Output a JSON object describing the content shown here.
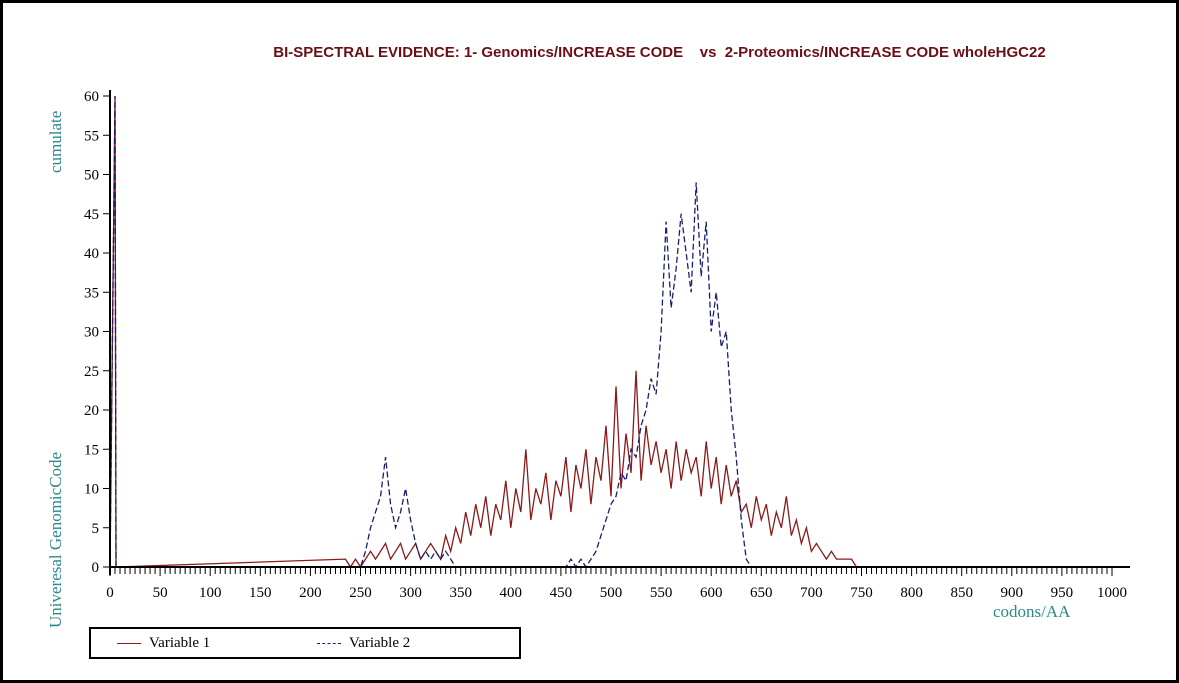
{
  "chart_data": {
    "type": "line",
    "title": "BI-SPECTRAL EVIDENCE: 1- Genomics/INCREASE CODE    vs  2-Proteomics/INCREASE CODE wholeHGC22",
    "xlabel": "codons/AA",
    "ylabel_top": "cumulate",
    "ylabel_bottom": "Univeresal GenomicCode",
    "xlim": [
      0,
      1000
    ],
    "ylim": [
      0,
      60
    ],
    "xticks": [
      "0",
      "50",
      "100",
      "150",
      "200",
      "250",
      "300",
      "350",
      "400",
      "450",
      "500",
      "550",
      "600",
      "650",
      "700",
      "750",
      "800",
      "850",
      "900",
      "950",
      "1000"
    ],
    "yticks": [
      "0",
      "5",
      "10",
      "15",
      "20",
      "25",
      "30",
      "35",
      "40",
      "45",
      "50",
      "55",
      "60"
    ],
    "grid": false,
    "legend_position": "bottom-left",
    "series": [
      {
        "name": "Variable 1",
        "color": "#8b1a1a",
        "style": "solid",
        "points": [
          [
            0,
            0
          ],
          [
            5,
            60
          ],
          [
            6,
            0
          ],
          [
            235,
            1
          ],
          [
            240,
            0
          ],
          [
            245,
            1
          ],
          [
            250,
            0
          ],
          [
            255,
            1
          ],
          [
            260,
            2
          ],
          [
            265,
            1
          ],
          [
            270,
            2
          ],
          [
            275,
            3
          ],
          [
            280,
            1
          ],
          [
            285,
            2
          ],
          [
            290,
            3
          ],
          [
            295,
            1
          ],
          [
            300,
            2
          ],
          [
            305,
            3
          ],
          [
            310,
            1
          ],
          [
            315,
            2
          ],
          [
            320,
            3
          ],
          [
            325,
            2
          ],
          [
            330,
            1
          ],
          [
            335,
            4
          ],
          [
            340,
            2
          ],
          [
            345,
            5
          ],
          [
            350,
            3
          ],
          [
            355,
            7
          ],
          [
            360,
            4
          ],
          [
            365,
            8
          ],
          [
            370,
            5
          ],
          [
            375,
            9
          ],
          [
            380,
            4
          ],
          [
            385,
            8
          ],
          [
            390,
            6
          ],
          [
            395,
            11
          ],
          [
            400,
            5
          ],
          [
            405,
            10
          ],
          [
            410,
            7
          ],
          [
            415,
            15
          ],
          [
            420,
            6
          ],
          [
            425,
            10
          ],
          [
            430,
            8
          ],
          [
            435,
            12
          ],
          [
            440,
            6
          ],
          [
            445,
            11
          ],
          [
            450,
            9
          ],
          [
            455,
            14
          ],
          [
            460,
            7
          ],
          [
            465,
            13
          ],
          [
            470,
            10
          ],
          [
            475,
            15
          ],
          [
            480,
            8
          ],
          [
            485,
            14
          ],
          [
            490,
            11
          ],
          [
            495,
            18
          ],
          [
            500,
            9
          ],
          [
            505,
            23
          ],
          [
            510,
            10
          ],
          [
            515,
            17
          ],
          [
            520,
            12
          ],
          [
            525,
            25
          ],
          [
            530,
            11
          ],
          [
            535,
            18
          ],
          [
            540,
            13
          ],
          [
            545,
            16
          ],
          [
            550,
            12
          ],
          [
            555,
            15
          ],
          [
            560,
            10
          ],
          [
            565,
            16
          ],
          [
            570,
            11
          ],
          [
            575,
            15
          ],
          [
            580,
            12
          ],
          [
            585,
            14
          ],
          [
            590,
            9
          ],
          [
            595,
            16
          ],
          [
            600,
            10
          ],
          [
            605,
            14
          ],
          [
            610,
            8
          ],
          [
            615,
            13
          ],
          [
            620,
            9
          ],
          [
            625,
            11
          ],
          [
            630,
            7
          ],
          [
            635,
            8
          ],
          [
            640,
            5
          ],
          [
            645,
            9
          ],
          [
            650,
            6
          ],
          [
            655,
            8
          ],
          [
            660,
            4
          ],
          [
            665,
            7
          ],
          [
            670,
            5
          ],
          [
            675,
            9
          ],
          [
            680,
            4
          ],
          [
            685,
            6
          ],
          [
            690,
            3
          ],
          [
            695,
            5
          ],
          [
            700,
            2
          ],
          [
            705,
            3
          ],
          [
            710,
            2
          ],
          [
            715,
            1
          ],
          [
            720,
            2
          ],
          [
            725,
            1
          ],
          [
            730,
            1
          ],
          [
            735,
            1
          ],
          [
            740,
            1
          ],
          [
            745,
            0
          ]
        ]
      },
      {
        "name": "Variable 2",
        "color": "#1a1f6b",
        "style": "dashed",
        "points": [
          [
            0,
            0
          ],
          [
            5,
            60
          ],
          [
            6,
            0
          ],
          [
            250,
            0
          ],
          [
            255,
            2
          ],
          [
            260,
            5
          ],
          [
            265,
            7
          ],
          [
            270,
            9
          ],
          [
            275,
            14
          ],
          [
            280,
            8
          ],
          [
            285,
            5
          ],
          [
            290,
            7
          ],
          [
            295,
            10
          ],
          [
            300,
            6
          ],
          [
            305,
            3
          ],
          [
            310,
            1
          ],
          [
            315,
            2
          ],
          [
            320,
            1
          ],
          [
            325,
            2
          ],
          [
            330,
            1
          ],
          [
            335,
            2
          ],
          [
            340,
            1
          ],
          [
            345,
            0
          ],
          [
            455,
            0
          ],
          [
            460,
            1
          ],
          [
            465,
            0
          ],
          [
            470,
            1
          ],
          [
            475,
            0
          ],
          [
            480,
            1
          ],
          [
            485,
            2
          ],
          [
            490,
            4
          ],
          [
            495,
            6
          ],
          [
            500,
            8
          ],
          [
            505,
            9
          ],
          [
            510,
            12
          ],
          [
            515,
            11
          ],
          [
            520,
            15
          ],
          [
            525,
            14
          ],
          [
            530,
            18
          ],
          [
            535,
            20
          ],
          [
            540,
            24
          ],
          [
            545,
            22
          ],
          [
            550,
            30
          ],
          [
            555,
            44
          ],
          [
            560,
            33
          ],
          [
            565,
            38
          ],
          [
            570,
            45
          ],
          [
            575,
            40
          ],
          [
            580,
            35
          ],
          [
            585,
            49
          ],
          [
            590,
            37
          ],
          [
            595,
            44
          ],
          [
            600,
            30
          ],
          [
            605,
            35
          ],
          [
            610,
            28
          ],
          [
            615,
            30
          ],
          [
            620,
            20
          ],
          [
            625,
            14
          ],
          [
            630,
            6
          ],
          [
            635,
            1
          ],
          [
            640,
            0
          ]
        ]
      }
    ]
  }
}
